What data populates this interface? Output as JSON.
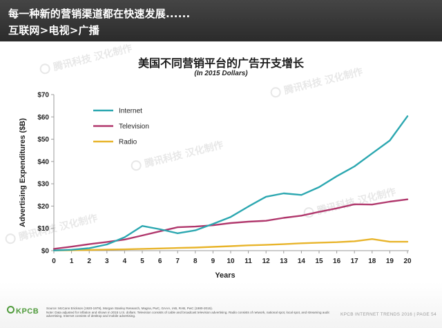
{
  "header": {
    "title": "每一种新的营销渠道都在快速发展......",
    "subtitle": "互联网>电视>广播"
  },
  "chart_data": {
    "type": "line",
    "title": "美国不同营销平台的广告开支增长",
    "subtitle": "(In 2015 Dollars)",
    "xlabel": "Years",
    "ylabel": "Advertising Expenditures ($B)",
    "xlim": [
      0,
      20
    ],
    "ylim": [
      0,
      70
    ],
    "x": [
      0,
      1,
      2,
      3,
      4,
      5,
      6,
      7,
      8,
      9,
      10,
      11,
      12,
      13,
      14,
      15,
      16,
      17,
      18,
      19,
      20
    ],
    "y_ticks": [
      0,
      10,
      20,
      30,
      40,
      50,
      60,
      70
    ],
    "y_tick_labels": [
      "$0",
      "$10",
      "$20",
      "$30",
      "$40",
      "$50",
      "$60",
      "$70"
    ],
    "grid": false,
    "legend": "top-left",
    "series": [
      {
        "name": "Internet",
        "color": "#2ba7b0",
        "values": [
          0.1,
          0.4,
          1.1,
          2.8,
          6.0,
          11.1,
          9.6,
          7.8,
          9.1,
          12.0,
          15.1,
          19.8,
          24.2,
          25.7,
          25.0,
          28.5,
          33.4,
          37.8,
          43.6,
          49.4,
          60.3
        ]
      },
      {
        "name": "Television",
        "color": "#b0376c",
        "values": [
          0.8,
          1.8,
          2.9,
          3.9,
          5.0,
          6.8,
          8.7,
          10.5,
          10.8,
          11.4,
          12.4,
          13.0,
          13.4,
          14.7,
          15.7,
          17.4,
          19.0,
          20.8,
          20.7,
          22.0,
          23.0
        ]
      },
      {
        "name": "Radio",
        "color": "#e8b42a",
        "values": [
          0.1,
          0.2,
          0.3,
          0.5,
          0.6,
          0.8,
          1.0,
          1.2,
          1.4,
          1.7,
          2.0,
          2.4,
          2.6,
          2.9,
          3.3,
          3.6,
          3.8,
          4.2,
          5.2,
          4.0,
          4.0
        ]
      }
    ]
  },
  "footer": {
    "source_lines": [
      "Source: McCann Erickson (1920-1979), Morgan Stanley Research, Magna, PwC, GAAA, IAB, RAB, PwC (1980-2015).",
      "Note: Data adjusted for inflation and shown in 2015 U.S. dollars. Television consists of cable and broadcast television advertising. Radio consists of network, national spot, local spot, and streaming audio",
      "advertising. Internet consists of desktop and mobile advertising."
    ],
    "logo_text": "KPCB",
    "logo_color": "#4e9a3a",
    "page_label": "KPCB INTERNET TRENDS 2016  |  PAGE 54"
  },
  "watermark": {
    "text": "腾讯科技 汉化制作"
  }
}
